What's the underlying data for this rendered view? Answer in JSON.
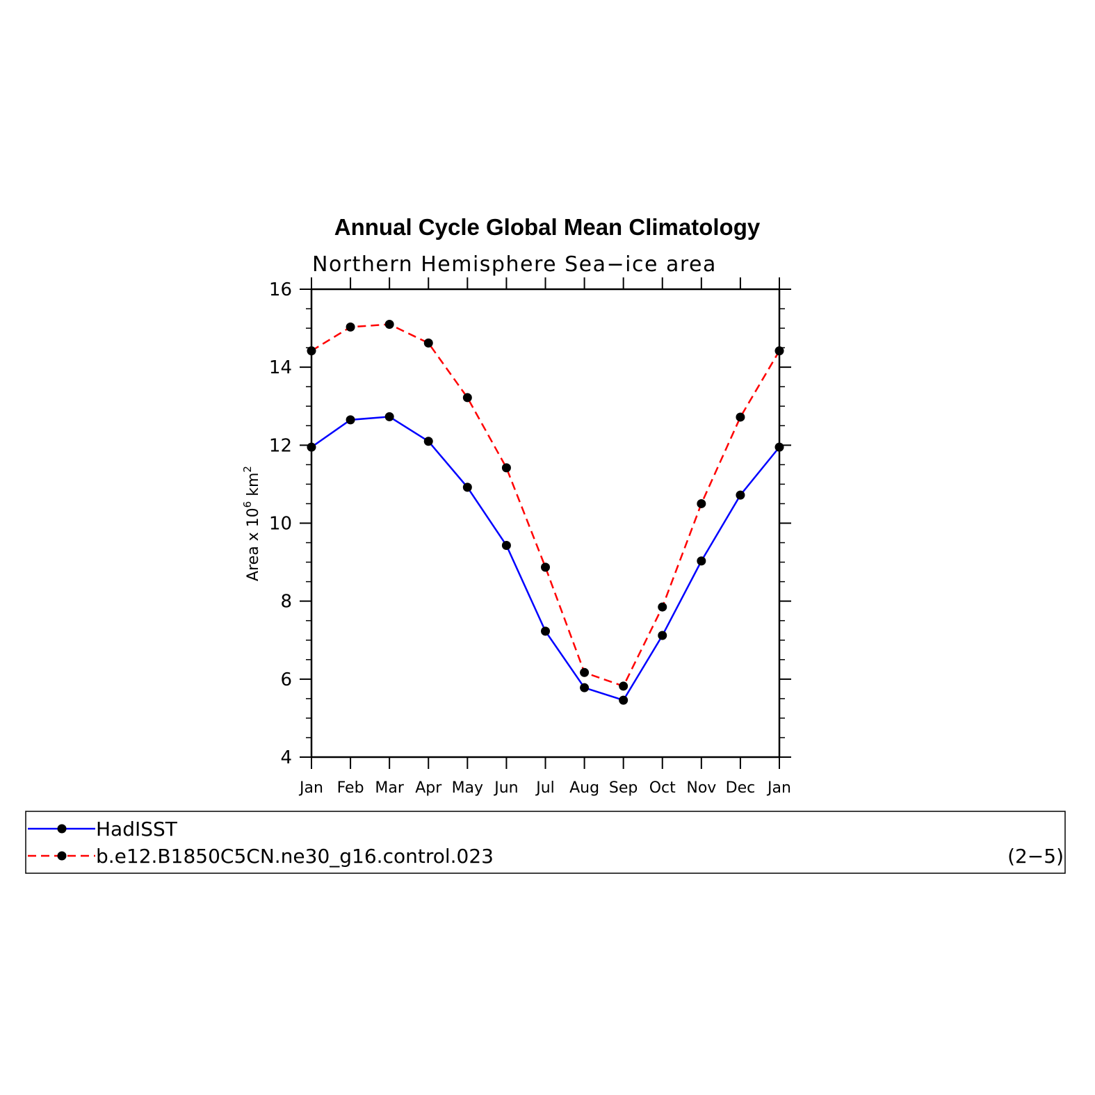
{
  "chart_data": {
    "type": "line",
    "title": "Annual Cycle Global Mean Climatology",
    "subtitle": "Northern Hemisphere Sea−ice area",
    "ylabel_parts": {
      "prefix": "Area x 10",
      "exp1": "6",
      "mid": " km",
      "exp2": "2"
    },
    "categories": [
      "Jan",
      "Feb",
      "Mar",
      "Apr",
      "May",
      "Jun",
      "Jul",
      "Aug",
      "Sep",
      "Oct",
      "Nov",
      "Dec",
      "Jan"
    ],
    "ylim": [
      4,
      16
    ],
    "yticks": [
      4,
      6,
      8,
      10,
      12,
      14,
      16
    ],
    "series": [
      {
        "name": "HadISST",
        "color": "#0000ff",
        "dash": "solid",
        "values": [
          11.95,
          12.65,
          12.73,
          12.1,
          10.92,
          9.43,
          7.23,
          5.78,
          5.46,
          7.12,
          9.03,
          10.72,
          11.95
        ]
      },
      {
        "name": "b.e12.B1850C5CN.ne30_g16.control.023",
        "color": "#ff0000",
        "dash": "dashed",
        "values": [
          14.42,
          15.03,
          15.1,
          14.62,
          13.22,
          11.42,
          8.87,
          6.17,
          5.82,
          7.85,
          10.5,
          12.72,
          14.42
        ]
      }
    ],
    "marker_color": "#000000",
    "grid": false,
    "legend_position": "bottom"
  },
  "footer": {
    "panel_id": "(2−5)"
  }
}
